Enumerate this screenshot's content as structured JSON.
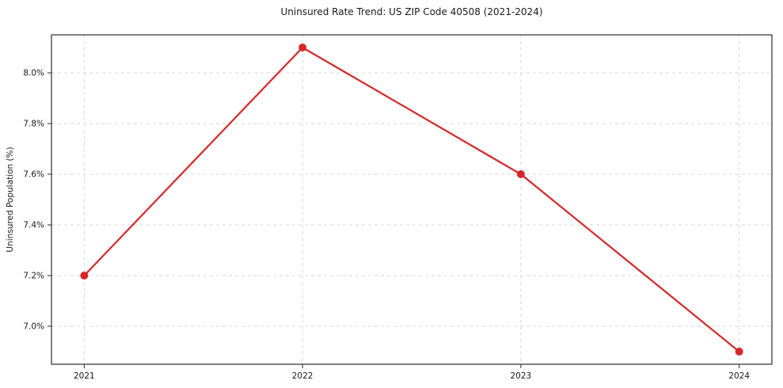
{
  "chart_data": {
    "type": "line",
    "title": "Uninsured Rate Trend: US ZIP Code 40508 (2021-2024)",
    "xlabel": "",
    "ylabel": "Uninsured Population (%)",
    "x": [
      2021,
      2022,
      2023,
      2024
    ],
    "values": [
      7.2,
      8.1,
      7.6,
      6.9
    ],
    "xtick_labels": [
      "2021",
      "2022",
      "2023",
      "2024"
    ],
    "yticks": [
      7.0,
      7.2,
      7.4,
      7.6,
      7.8,
      8.0
    ],
    "ytick_labels": [
      "7.0%",
      "7.2%",
      "7.4%",
      "7.6%",
      "7.8%",
      "8.0%"
    ],
    "xlim": [
      2020.85,
      2024.15
    ],
    "ylim": [
      6.85,
      8.15
    ],
    "grid": true,
    "legend_position": "none",
    "line_color": "#d62728",
    "marker_color": "#d62728",
    "grid_color": "#d9d9d9",
    "marker_style": "circle"
  }
}
